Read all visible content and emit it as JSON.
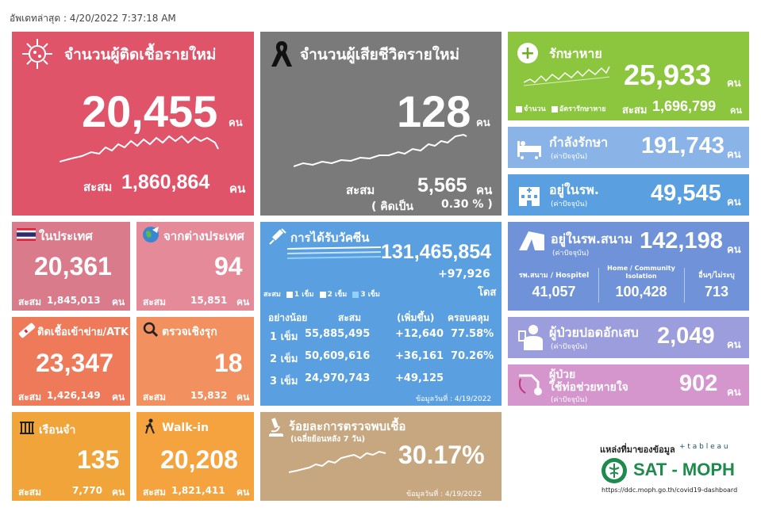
{
  "update_label": "อัพเดทล่าสุด : 4/20/2022 7:37:18 AM",
  "new_cases": {
    "title": "จำนวนผู้ติดเชื้อรายใหม่",
    "value": "20,455",
    "unit": "คน",
    "cum_label": "สะสม",
    "cum_value": "1,860,864",
    "cum_unit": "คน"
  },
  "new_deaths": {
    "title": "จำนวนผู้เสียชีวิตรายใหม่",
    "value": "128",
    "unit": "คน",
    "cum_label": "สะสม",
    "cum_value": "5,565",
    "cum_unit": "คน",
    "pct_label": "( คิดเป็น",
    "pct_value": "0.30 % )"
  },
  "recovered": {
    "title": "รักษาหาย",
    "value": "25,933",
    "unit": "คน",
    "legend1": "จำนวน",
    "legend2": "อัตรารักษาหาย",
    "cum_label": "สะสม",
    "cum_value": "1,696,799",
    "cum_unit": "คน"
  },
  "in_treatment": {
    "title": "กำลังรักษา",
    "sub": "(ค่าปัจจุบัน)",
    "value": "191,743",
    "unit": "คน"
  },
  "hospital": {
    "title": "อยู่ในรพ.",
    "sub": "(ค่าปัจจุบัน)",
    "value": "49,545",
    "unit": "คน"
  },
  "field_hospital": {
    "title": "อยู่ในรพ.สนาม",
    "sub": "(ค่าปัจจุบัน)",
    "value": "142,198",
    "unit": "คน",
    "col1_label": "รพ.สนาม / Hospitel",
    "col1_value": "41,057",
    "col2_label": "Home / Community Isolation",
    "col2_value": "100,428",
    "col3_label": "อื่นๆ/ไม่ระบุ",
    "col3_value": "713"
  },
  "pneumonia": {
    "title": "ผู้ป่วยปอดอักเสบ",
    "sub": "(ค่าปัจจุบัน)",
    "value": "2,049",
    "unit": "คน"
  },
  "ventilator": {
    "title1": "ผู้ป่วย",
    "title2": "ใช้ท่อช่วยหายใจ",
    "sub": "(ค่าปัจจุบัน)",
    "value": "902",
    "unit": "คน"
  },
  "domestic": {
    "title": "ในประเทศ",
    "value": "20,361",
    "cum_label": "สะสม",
    "cum_value": "1,845,013",
    "cum_unit": "คน"
  },
  "imported": {
    "title": "จากต่างประเทศ",
    "value": "94",
    "cum_label": "สะสม",
    "cum_value": "15,851",
    "cum_unit": "คน"
  },
  "prison_atk": {
    "title": "ติดเชื้อเข้าข่าย/ATK",
    "value": "23,347",
    "cum_label": "สะสม",
    "cum_value": "1,426,149",
    "cum_unit": "คน"
  },
  "active_search": {
    "title": "ตรวจเชิงรุก",
    "value": "18",
    "cum_label": "สะสม",
    "cum_value": "15,832",
    "cum_unit": "คน"
  },
  "prison": {
    "title": "เรือนจำ",
    "value": "135",
    "cum_label": "สะสม",
    "cum_value": "7,770",
    "cum_unit": "คน"
  },
  "walkin": {
    "title": "Walk-in",
    "value": "20,208",
    "cum_label": "สะสม",
    "cum_value": "1,821,411",
    "cum_unit": "คน"
  },
  "vaccine": {
    "title": "การได้รับวัคซีน",
    "value": "131,465,854",
    "delta": "+97,926",
    "unit": "โดส",
    "legend_label": "สะสม",
    "legend": [
      "1 เข็ม",
      "2 เข็ม",
      "3 เข็ม"
    ],
    "headers": [
      "อย่างน้อย",
      "สะสม",
      "(เพิ่มขึ้น)",
      "ครอบคลุม"
    ],
    "rows": [
      {
        "dose": "1 เข็ม",
        "total": "55,885,495",
        "delta": "+12,640",
        "cov": "77.58%"
      },
      {
        "dose": "2 เข็ม",
        "total": "50,609,616",
        "delta": "+36,161",
        "cov": "70.26%"
      },
      {
        "dose": "3 เข็ม",
        "total": "24,970,743",
        "delta": "+49,125",
        "cov": ""
      }
    ],
    "date_note": "ข้อมูลวันที่ : 4/19/2022"
  },
  "positivity": {
    "title": "ร้อยละการตรวจพบเชื้อ",
    "sub": "(เฉลี่ยย้อนหลัง 7 วัน)",
    "value": "30.17%",
    "date_note": "ข้อมูลวันที่ : 4/19/2022"
  },
  "source": {
    "label": "แหล่งที่มาของข้อมูล",
    "tableau": "+ t a b l e a u",
    "brand": "SAT - MOPH",
    "url": "https://ddc.moph.go.th/covid19-dashboard"
  },
  "colors": {
    "red": "#e0546a",
    "gray": "#7a7a7a",
    "green": "#8cc63f",
    "blue": "#8ab4e8",
    "vax": "#5a9fe0",
    "lilac": "#9c9ddc",
    "pink": "#d596cd",
    "orange": "#f1a43a",
    "tan": "#c6a77f"
  }
}
